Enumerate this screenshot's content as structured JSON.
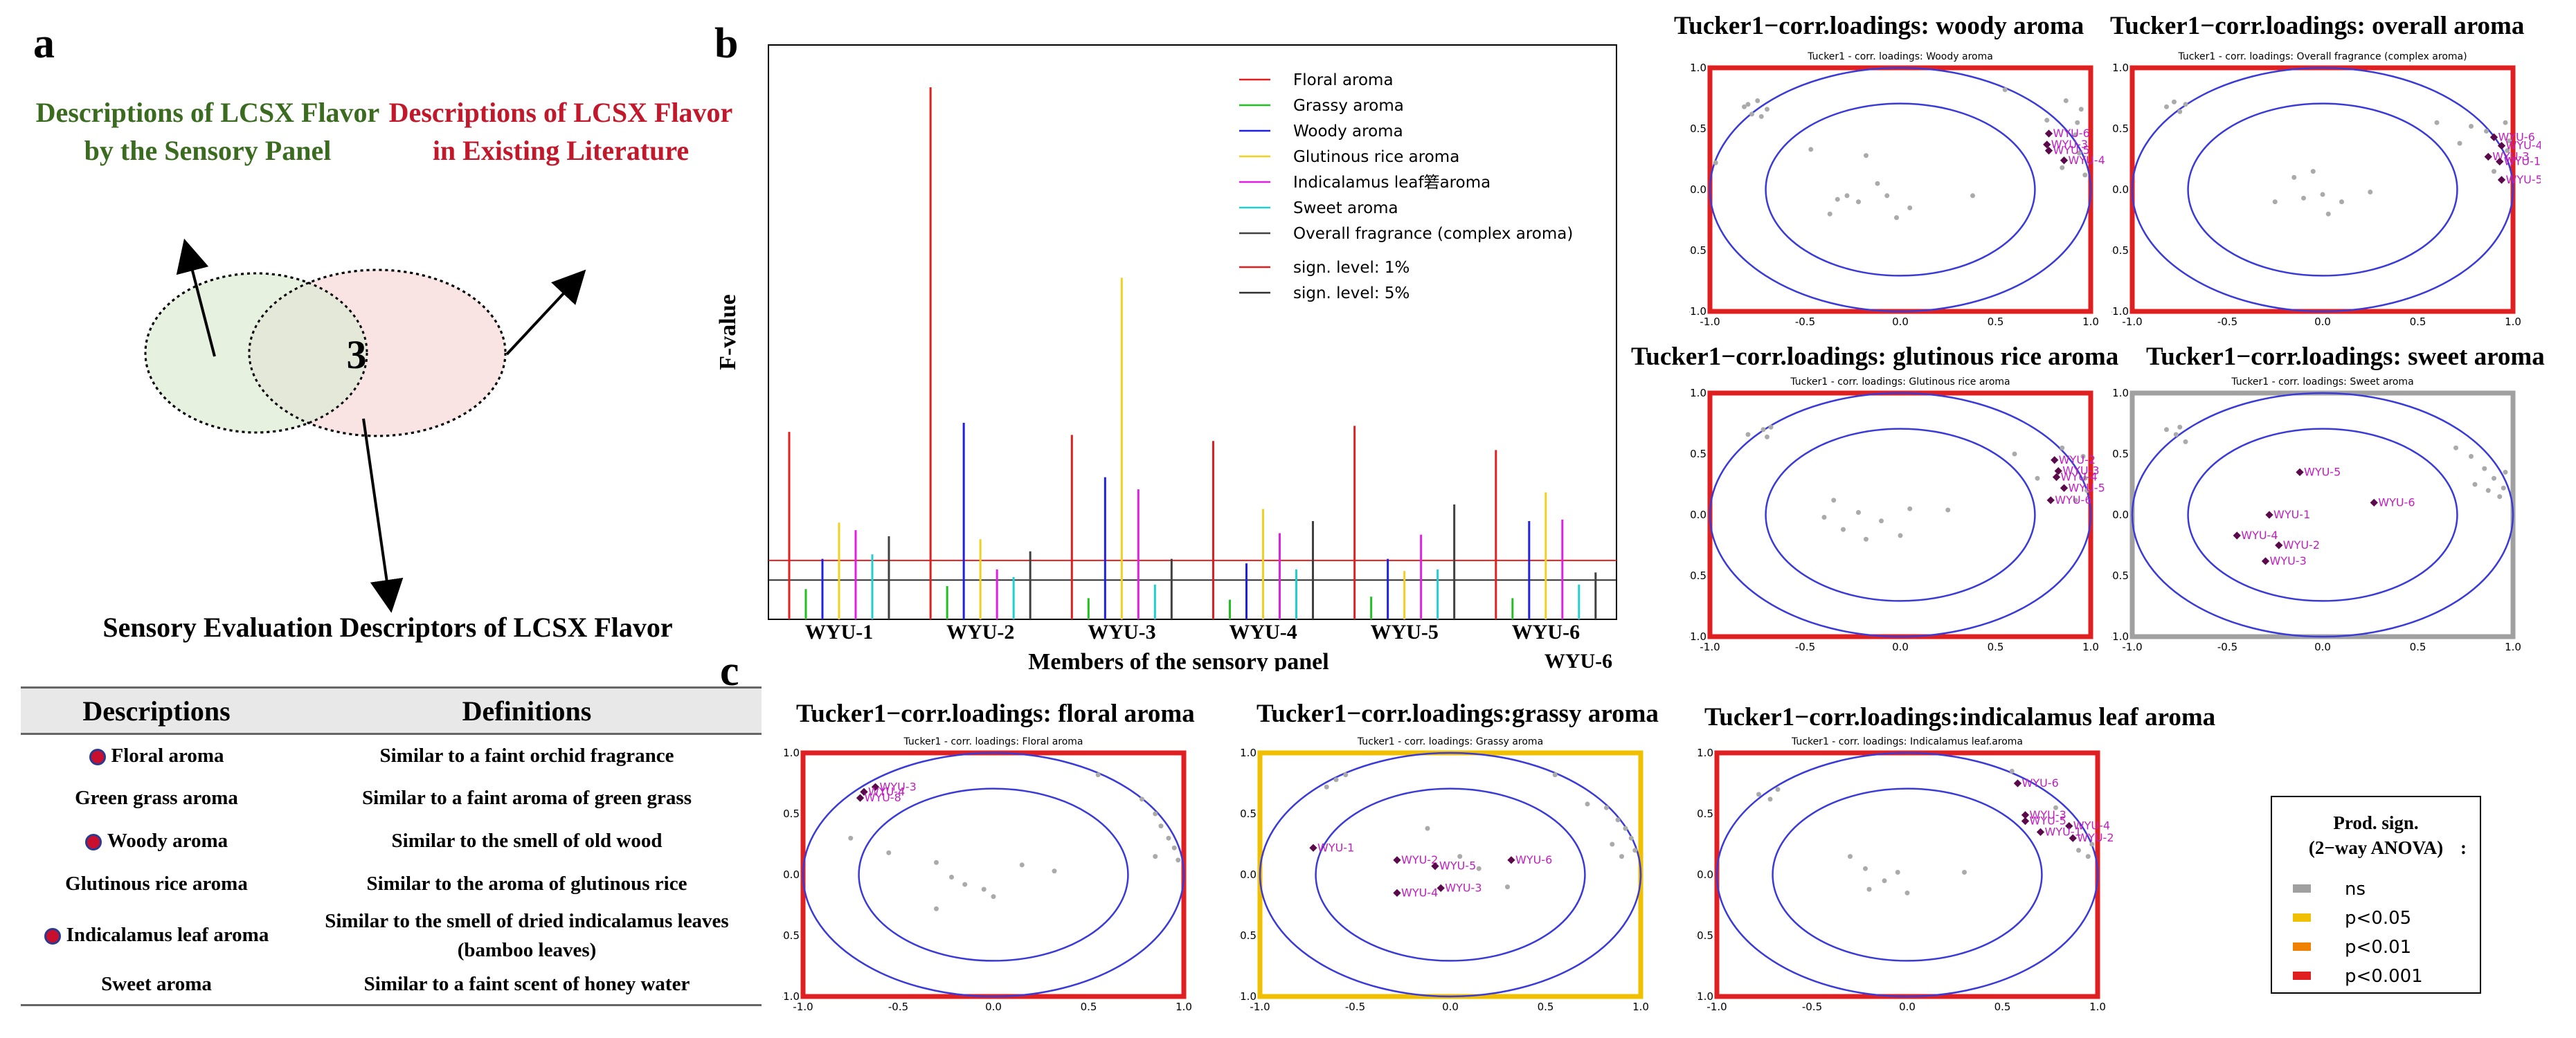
{
  "panels": {
    "a": "a",
    "b": "b",
    "c": "c"
  },
  "venn": {
    "left_title": "Descriptions of LCSX Flavor by the Sensory Panel",
    "right_title": "Descriptions of LCSX Flavor in Existing Literature",
    "overlap_count": "3",
    "bottom_title": "Sensory Evaluation Descriptors of LCSX Flavor",
    "colors": {
      "left": "#e6f2df",
      "right": "#f9e3e3",
      "overlap": "#e4e8d8",
      "left_text": "#3a6b1f",
      "right_text": "#c2182b"
    }
  },
  "table": {
    "headers": [
      "Descriptions",
      "Definitions"
    ],
    "rows": [
      {
        "description": "Floral aroma",
        "definition": "Similar to a faint orchid fragrance",
        "marked": true
      },
      {
        "description": "Green grass aroma",
        "definition": "Similar to a faint aroma of green grass",
        "marked": false
      },
      {
        "description": "Woody aroma",
        "definition": "Similar to the smell of old wood",
        "marked": true
      },
      {
        "description": "Glutinous rice aroma",
        "definition": "Similar to the aroma of glutinous rice",
        "marked": false
      },
      {
        "description": "Indicalamus leaf aroma",
        "definition": "Similar to the smell of dried indicalamus leaves (bamboo leaves)",
        "marked": true
      },
      {
        "description": "Sweet aroma",
        "definition": "Similar to a faint scent of honey water",
        "marked": false
      }
    ]
  },
  "chart_data": [
    {
      "type": "bar",
      "id": "panel-b-fvalues",
      "title": "",
      "xlabel": "Members of the sensory panel",
      "ylabel": "F-value",
      "categories": [
        "WYU-1",
        "WYU-2",
        "WYU-3",
        "WYU-4",
        "WYU-5",
        "WYU-6"
      ],
      "extra_label": "WYU-6",
      "ylim": [
        0,
        38
      ],
      "series": [
        {
          "name": "Floral aroma",
          "color": "#e02020",
          "values": [
            12.4,
            35.2,
            12.2,
            11.8,
            12.8,
            11.2
          ]
        },
        {
          "name": "Grassy aroma",
          "color": "#20c020",
          "values": [
            2.0,
            2.2,
            1.4,
            1.3,
            1.5,
            1.4
          ]
        },
        {
          "name": "Woody aroma",
          "color": "#2020e0",
          "values": [
            4.0,
            13.0,
            9.4,
            3.7,
            4.0,
            6.5
          ]
        },
        {
          "name": "Glutinous rice aroma",
          "color": "#f0d020",
          "values": [
            6.4,
            5.3,
            22.6,
            7.3,
            3.2,
            8.4
          ]
        },
        {
          "name": "Indicalamus leaf箬aroma",
          "color": "#e020e0",
          "values": [
            5.9,
            3.3,
            8.6,
            5.7,
            5.6,
            6.6
          ]
        },
        {
          "name": "Sweet aroma",
          "color": "#20d0d0",
          "values": [
            4.3,
            2.8,
            2.3,
            3.3,
            3.3,
            2.3
          ]
        },
        {
          "name": "Overall fragrance (complex aroma)",
          "color": "#404040",
          "values": [
            5.5,
            4.5,
            4.0,
            6.5,
            7.6,
            3.1
          ]
        }
      ],
      "hlines": [
        {
          "name": "sign. level: 1%",
          "color": "#e02020",
          "value": 3.9
        },
        {
          "name": "sign. level: 5%",
          "color": "#303030",
          "value": 2.6
        }
      ]
    },
    {
      "type": "scatter",
      "id": "woody",
      "title": "Tucker1−corr.loadings: woody aroma",
      "subtitle": "Tucker1 - corr. loadings: Woody aroma",
      "frame": "#e02020",
      "labels": [
        {
          "t": "WYU-6",
          "x": 0.78,
          "y": 0.46
        },
        {
          "t": "WYU-3",
          "x": 0.77,
          "y": 0.37
        },
        {
          "t": "WYU-5",
          "x": 0.78,
          "y": 0.32
        },
        {
          "t": "WYU-4",
          "x": 0.86,
          "y": 0.24
        }
      ],
      "ns": [
        [
          -0.73,
          0.6
        ],
        [
          -0.7,
          0.66
        ],
        [
          -0.82,
          0.68
        ],
        [
          -0.8,
          0.7
        ],
        [
          -0.75,
          0.73
        ],
        [
          -0.78,
          0.62
        ],
        [
          -0.97,
          0.22
        ],
        [
          -0.47,
          0.33
        ],
        [
          -0.28,
          -0.05
        ],
        [
          -0.18,
          0.28
        ],
        [
          -0.12,
          0.05
        ],
        [
          -0.22,
          -0.1
        ],
        [
          -0.07,
          -0.05
        ],
        [
          -0.02,
          -0.23
        ],
        [
          0.05,
          -0.15
        ],
        [
          -0.37,
          -0.2
        ],
        [
          -0.33,
          -0.08
        ],
        [
          0.38,
          -0.05
        ],
        [
          0.55,
          0.82
        ],
        [
          0.77,
          0.57
        ],
        [
          0.87,
          0.73
        ],
        [
          0.95,
          0.66
        ],
        [
          0.93,
          0.55
        ],
        [
          0.92,
          0.45
        ],
        [
          0.94,
          0.3
        ],
        [
          0.97,
          0.12
        ],
        [
          0.85,
          0.18
        ]
      ]
    },
    {
      "type": "scatter",
      "id": "overall",
      "title": "Tucker1−corr.loadings: overall aroma",
      "subtitle": "Tucker1 - corr. loadings: Overall fragrance (complex aroma)",
      "frame": "#e02020",
      "labels": [
        {
          "t": "WYU-6",
          "x": 0.9,
          "y": 0.43
        },
        {
          "t": "WYU-4",
          "x": 0.94,
          "y": 0.36
        },
        {
          "t": "WYU-3",
          "x": 0.87,
          "y": 0.27
        },
        {
          "t": "WYU-1",
          "x": 0.93,
          "y": 0.23
        },
        {
          "t": "WYU-5",
          "x": 0.94,
          "y": 0.08
        }
      ],
      "ns": [
        [
          -0.75,
          0.64
        ],
        [
          -0.72,
          0.7
        ],
        [
          -0.82,
          0.68
        ],
        [
          -0.78,
          0.72
        ],
        [
          -0.15,
          0.1
        ],
        [
          -0.05,
          0.15
        ],
        [
          0.0,
          -0.04
        ],
        [
          -0.1,
          -0.07
        ],
        [
          0.1,
          -0.1
        ],
        [
          0.03,
          -0.2
        ],
        [
          -0.25,
          -0.1
        ],
        [
          0.25,
          -0.02
        ],
        [
          0.6,
          0.55
        ],
        [
          0.78,
          0.52
        ],
        [
          0.86,
          0.48
        ],
        [
          0.96,
          0.55
        ],
        [
          0.72,
          0.38
        ],
        [
          0.97,
          0.32
        ],
        [
          0.9,
          0.15
        ],
        [
          0.98,
          0.4
        ]
      ]
    },
    {
      "type": "scatter",
      "id": "glutinous",
      "title": "Tucker1−corr.loadings: glutinous rice aroma",
      "subtitle": "Tucker1 - corr. loadings: Glutinous rice aroma",
      "frame": "#e02020",
      "labels": [
        {
          "t": "WYU-2",
          "x": 0.81,
          "y": 0.45
        },
        {
          "t": "WYU-3",
          "x": 0.83,
          "y": 0.36
        },
        {
          "t": "WYU-4",
          "x": 0.82,
          "y": 0.31
        },
        {
          "t": "WYU-5",
          "x": 0.86,
          "y": 0.22
        },
        {
          "t": "WYU-6",
          "x": 0.79,
          "y": 0.12
        }
      ],
      "ns": [
        [
          -0.7,
          0.64
        ],
        [
          -0.72,
          0.7
        ],
        [
          -0.68,
          0.72
        ],
        [
          -0.8,
          0.66
        ],
        [
          -0.35,
          0.12
        ],
        [
          -0.22,
          0.02
        ],
        [
          -0.1,
          -0.05
        ],
        [
          -0.3,
          -0.12
        ],
        [
          0.0,
          -0.17
        ],
        [
          0.05,
          0.05
        ],
        [
          -0.18,
          -0.2
        ],
        [
          -0.4,
          -0.02
        ],
        [
          0.25,
          0.04
        ],
        [
          0.6,
          0.5
        ],
        [
          0.72,
          0.3
        ],
        [
          0.85,
          0.55
        ],
        [
          0.96,
          0.48
        ],
        [
          0.97,
          0.3
        ],
        [
          0.92,
          0.12
        ],
        [
          0.98,
          0.2
        ]
      ]
    },
    {
      "type": "scatter",
      "id": "sweet",
      "title": "Tucker1−corr.loadings: sweet aroma",
      "subtitle": "Tucker1 - corr. loadings: Sweet aroma",
      "frame": "#a0a0a0",
      "labels": [
        {
          "t": "WYU-5",
          "x": -0.12,
          "y": 0.35
        },
        {
          "t": "WYU-1",
          "x": -0.28,
          "y": 0.0
        },
        {
          "t": "WYU-6",
          "x": 0.27,
          "y": 0.1
        },
        {
          "t": "WYU-4",
          "x": -0.45,
          "y": -0.17
        },
        {
          "t": "WYU-2",
          "x": -0.23,
          "y": -0.25
        },
        {
          "t": "WYU-3",
          "x": -0.3,
          "y": -0.38
        }
      ],
      "ns": [
        [
          -0.77,
          0.66
        ],
        [
          -0.72,
          0.6
        ],
        [
          -0.82,
          0.7
        ],
        [
          -0.75,
          0.72
        ],
        [
          0.7,
          0.55
        ],
        [
          0.78,
          0.48
        ],
        [
          0.85,
          0.38
        ],
        [
          0.9,
          0.3
        ],
        [
          0.95,
          0.22
        ],
        [
          0.93,
          0.15
        ],
        [
          0.87,
          0.2
        ],
        [
          0.96,
          0.35
        ],
        [
          0.8,
          0.25
        ]
      ]
    },
    {
      "type": "scatter",
      "id": "floral",
      "title": "Tucker1−corr.loadings: floral aroma",
      "subtitle": "Tucker1 - corr. loadings: Floral aroma",
      "frame": "#e02020",
      "labels": [
        {
          "t": "WYU-3",
          "x": -0.62,
          "y": 0.72
        },
        {
          "t": "WYU-4",
          "x": -0.68,
          "y": 0.68
        },
        {
          "t": "WYU-8",
          "x": -0.7,
          "y": 0.63
        }
      ],
      "ns": [
        [
          -0.75,
          0.3
        ],
        [
          -0.55,
          0.18
        ],
        [
          -0.3,
          0.1
        ],
        [
          -0.22,
          -0.02
        ],
        [
          -0.15,
          -0.08
        ],
        [
          -0.05,
          -0.12
        ],
        [
          -0.3,
          -0.28
        ],
        [
          0.0,
          -0.18
        ],
        [
          0.15,
          0.08
        ],
        [
          0.32,
          0.03
        ],
        [
          0.55,
          0.82
        ],
        [
          0.78,
          0.62
        ],
        [
          0.85,
          0.5
        ],
        [
          0.88,
          0.4
        ],
        [
          0.92,
          0.3
        ],
        [
          0.95,
          0.22
        ],
        [
          0.97,
          0.12
        ],
        [
          0.85,
          0.15
        ]
      ]
    },
    {
      "type": "scatter",
      "id": "grassy",
      "title": "Tucker1−corr.loadings:grassy aroma",
      "subtitle": "Tucker1 - corr. loadings: Grassy aroma",
      "frame": "#f0c000",
      "labels": [
        {
          "t": "WYU-1",
          "x": -0.72,
          "y": 0.22
        },
        {
          "t": "WYU-2",
          "x": -0.28,
          "y": 0.12
        },
        {
          "t": "WYU-5",
          "x": -0.08,
          "y": 0.07
        },
        {
          "t": "WYU-6",
          "x": 0.32,
          "y": 0.12
        },
        {
          "t": "WYU-4",
          "x": -0.28,
          "y": -0.15
        },
        {
          "t": "WYU-3",
          "x": -0.05,
          "y": -0.11
        }
      ],
      "ns": [
        [
          -0.6,
          0.78
        ],
        [
          -0.55,
          0.82
        ],
        [
          -0.65,
          0.72
        ],
        [
          -0.12,
          0.38
        ],
        [
          0.05,
          0.15
        ],
        [
          0.15,
          0.05
        ],
        [
          0.3,
          -0.1
        ],
        [
          0.55,
          0.82
        ],
        [
          0.72,
          0.58
        ],
        [
          0.82,
          0.55
        ],
        [
          0.88,
          0.45
        ],
        [
          0.92,
          0.38
        ],
        [
          0.95,
          0.3
        ],
        [
          0.97,
          0.2
        ],
        [
          0.9,
          0.15
        ],
        [
          0.85,
          0.25
        ]
      ]
    },
    {
      "type": "scatter",
      "id": "indicalamus",
      "title": "Tucker1−corr.loadings:indicalamus leaf aroma",
      "subtitle": "Tucker1 - corr. loadings: Indicalamus leaf.aroma",
      "frame": "#e02020",
      "labels": [
        {
          "t": "WYU-6",
          "x": 0.58,
          "y": 0.75
        },
        {
          "t": "WYU-3",
          "x": 0.62,
          "y": 0.49
        },
        {
          "t": "WYU-5",
          "x": 0.62,
          "y": 0.44
        },
        {
          "t": "WYU-4",
          "x": 0.85,
          "y": 0.4
        },
        {
          "t": "WYU-1",
          "x": 0.7,
          "y": 0.35
        },
        {
          "t": "WYU-2",
          "x": 0.87,
          "y": 0.3
        }
      ],
      "ns": [
        [
          -0.72,
          0.62
        ],
        [
          -0.68,
          0.7
        ],
        [
          -0.78,
          0.66
        ],
        [
          -0.3,
          0.15
        ],
        [
          -0.22,
          0.05
        ],
        [
          -0.12,
          -0.05
        ],
        [
          -0.2,
          -0.12
        ],
        [
          0.0,
          -0.15
        ],
        [
          -0.05,
          0.02
        ],
        [
          0.3,
          0.02
        ],
        [
          0.55,
          0.85
        ],
        [
          0.78,
          0.55
        ],
        [
          0.9,
          0.2
        ],
        [
          0.95,
          0.15
        ],
        [
          0.97,
          0.25
        ]
      ]
    }
  ],
  "axis_ticks_x": [
    "-1.0",
    "-0.5",
    "0.0",
    "0.5",
    "1.0"
  ],
  "axis_ticks_y": [
    "1.0",
    "0.5",
    "0.0",
    "-0.5",
    "-1.0"
  ],
  "legend": {
    "title_line1": "Prod. sign.",
    "title_line2": "(2−way ANOVA)",
    "suffix": ":",
    "items": [
      {
        "label": "ns",
        "color": "#a0a0a0"
      },
      {
        "label": "p<0.05",
        "color": "#f0c000"
      },
      {
        "label": "p<0.01",
        "color": "#f08000"
      },
      {
        "label": "p<0.001",
        "color": "#e02020"
      }
    ]
  }
}
